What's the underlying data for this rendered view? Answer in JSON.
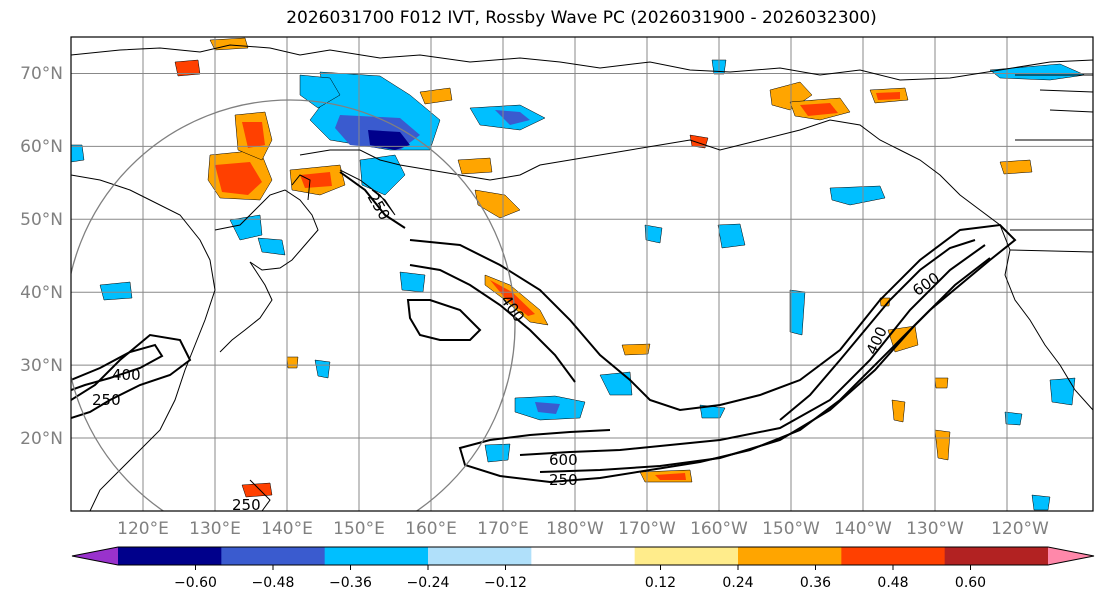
{
  "title": "2026031700 F012 IVT, Rossby Wave PC (2026031900 - 2026032300)",
  "lat_labels": [
    "70°N",
    "60°N",
    "50°N",
    "40°N",
    "30°N",
    "20°N"
  ],
  "lat_values": [
    70,
    60,
    50,
    40,
    30,
    20
  ],
  "lon_labels": [
    "120°E",
    "130°E",
    "140°E",
    "150°E",
    "160°E",
    "170°E",
    "180°W",
    "170°W",
    "160°W",
    "150°W",
    "140°W",
    "130°W",
    "120°W"
  ],
  "lon_values": [
    120,
    130,
    140,
    150,
    160,
    170,
    180,
    190,
    200,
    210,
    220,
    230,
    240
  ],
  "extent": {
    "lon_min": 109,
    "lon_max": 251,
    "lat_min": 10,
    "lat_max": 75
  },
  "contour_labels": [
    "250",
    "400",
    "250",
    "400",
    "600",
    "250",
    "600",
    "400",
    "250"
  ],
  "colorbar": {
    "ticks": [
      "−0.60",
      "−0.48",
      "−0.36",
      "−0.24",
      "−0.12",
      "0.12",
      "0.24",
      "0.36",
      "0.48",
      "0.60"
    ],
    "tick_values": [
      -0.6,
      -0.48,
      -0.36,
      -0.24,
      -0.12,
      0.12,
      0.24,
      0.36,
      0.48,
      0.6
    ],
    "range": [
      -0.72,
      0.72
    ],
    "colors": [
      "#9932cc",
      "#00008b",
      "#3a5bcf",
      "#00bfff",
      "#b0e0fa",
      "#ffffff",
      "#ffec8b",
      "#ffa500",
      "#ff4000",
      "#b22222",
      "#ff88aa"
    ]
  },
  "colors": {
    "grid": "#888888",
    "tick_text": "#808080",
    "coast": "#000000",
    "circle": "#808080"
  }
}
